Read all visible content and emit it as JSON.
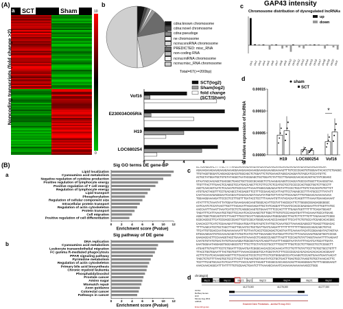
{
  "panelA": {
    "label": "(A)",
    "sublabel": "a",
    "col1": "SCT",
    "col2": "Sham",
    "ylabel": "Noncoding transcripts (fold change >2)",
    "scale_top": "10",
    "scale_bottom": "0"
  },
  "panelB_top": {
    "label": "b",
    "total": "Total=67(>=200bp)",
    "legend": [
      "cdna:known chromosome",
      "cdna:novel chromosome",
      "cdna:pseudoge",
      "ne chromosome",
      "ncrna:snoRNA chromosome",
      "PREDICTED: misc_RNA",
      "non-coding RNA",
      "ncrna:miRNA chromosome",
      "ncrna:misc_RNA chromosome"
    ],
    "legend_colors": [
      "#111111",
      "#4a4a4a",
      "#8c8c8c",
      "#ffffff",
      "#d9d9d9",
      "#707070",
      "#bdbdbd",
      "#f2f2f2",
      "#cfcfcf"
    ]
  },
  "panelC_top": {
    "label": "c",
    "title": "GAP43 intensity",
    "subtitle": "Chromosome distribution of dysregulated lncRNAs",
    "legend_up": "up",
    "legend_down": "down",
    "chromosomes": [
      "chr1",
      "chr2",
      "chr3",
      "chr4",
      "chr5",
      "chr6",
      "chr7",
      "chr8",
      "chr9",
      "chr10",
      "chr11",
      "chr12",
      "chr13",
      "chr14",
      "chr15",
      "chr16",
      "chr17",
      "chr18",
      "chr19",
      "chr20",
      "chrX"
    ]
  },
  "hbar_chart": {
    "legend": [
      "SCT(log2)",
      "Sham(log2)",
      "fold change (SCT/Sham)"
    ],
    "genes": [
      "Vof16",
      "E230034O05Rik",
      "H19",
      "LOC680254"
    ],
    "ticks": [
      "0",
      "2",
      "4",
      "6",
      "8",
      "10"
    ]
  },
  "panelD_top": {
    "label": "d",
    "ylabel": "The relative expression of lncRNA",
    "legend_sham": "sham",
    "legend_sct": "SCT",
    "yticks": [
      "0.00015",
      "0.00010",
      "0.00005",
      "0.00000"
    ],
    "genes": [
      "H19",
      "LOC680254",
      "Vof16"
    ],
    "star": "*"
  },
  "panelB_bottom": {
    "label": "(B)",
    "sublabel_a": "a",
    "title_a": "Sig GO terms DE gene-BP",
    "terms_a": [
      "Lipid localization",
      "Cyanoamino acid metabolism",
      "Negative regulation of cytokine production",
      "Positive regulation of lymphocyte energy",
      "Positive regulation of T cell energy",
      "Regulation of lymphocyte energy",
      "Lipid transport",
      "Phosphorylation",
      "Regulation of cellular component size",
      "Intracellular protein transport",
      "Regulation of actin cytoskeleton",
      "Protein transport",
      "Cell migration",
      "Positive regulation of cell differentiation"
    ],
    "xlabel_a": "Enrichment score (Pvalue)",
    "xticks_a": [
      "0",
      "2",
      "4",
      "6",
      "8",
      "10",
      "12"
    ],
    "sublabel_b": "b",
    "title_b": "Sig pathway of DE gene",
    "terms_b": [
      "DNA replication",
      "Cyanoamino acid metabolism",
      "Leukocyte transendothelial migration",
      "FC gamma R-mediated phagocytosis",
      "PPAR signaling pathway",
      "Pyrimidine metabolism",
      "Regulation of actin cytoskeleton",
      "Primary bile acid biosynthesis",
      "Chronic myeloid leukemia",
      "Phosphatidylinositol",
      "Prostate cancer",
      "Amino sugar",
      "Mismatch repair",
      "Axon guidance",
      "Colorectal cancer",
      "Pathways in cancer"
    ],
    "xlabel_b": "Enrichment score (Pvalue)",
    "xticks_b": [
      "0",
      "2",
      "4",
      "6",
      "8",
      "10",
      "12"
    ]
  },
  "panelC_bottom": {
    "label": "c",
    "sequence": "GCTGAAGGAACTTTTGCTTTTAAGGAAAAAGAAAGAAAGAAAGAAAGAAAGAAAGAAAGAAAGAAAGAAAGAAAGAA\nAGAAAGAAAGAAAGAAAGAAAAGGAAAGAAAGAAAGGAAAGAAAAGGAAAAGTTTGTCCCCGAGTGTGGGAATACACCTCTGAGGCTTCA\nTTGTAGGTGGGATCAGGAGCAGACGTGGCAGCTCTGGATTCTGTGAAAGTAGGCACAGGATGTAGCATCCCATGTTC\nACTGCTATGGATGCTGTGTATAGGCTAATACGGAGCTGCTGGATCTATTCCTTGAGAGCAACACACAGTACTATCGGAGC\nGTAATACCAACAGCTGACGGCTGAGCTGCTCGCCGCAGGCTCTCAAAGACAGGTCCAGCATGCCCATGGCTTCAACGGTAA\nTTGTTTACTTTGAACTCCAGGCTCCATGACCAGCTTCTCTTCCTCTCCATGCTCCTCCCCCCACTGGCTGGTCTTGCCTT\nAGCTCAACAGTAATCTCAAAATGTGCCCAATTAAAATGGGCAGGAGAATGTATTCCCCTGCATTGTCTACACGTGTGTTCT\nATGTGACTAGGTTTCCTGACAGCCTACGAGGTTCCTTTCCGAACACCATTAGTTCCTAGAGCCCTTTATGCCCTTTATATT\nCAATACAAAAGAGGGAATCAAGAATCAGAAAAGATAAAATATGGTGTTATACTTGCAAGATTTGTGGAACAAAAAAAAAA\nTGGAAGGAAAAGATTCCCCTCCTTGGTTTGATACCTCCTTTAAAAATGTTATACACAATCAGGTTTTAAAATGAAAGAAAAT\nATATTTTCTAAATATTATGGAATGAAAGAAGCAAGTGGGCACATTCGTATTAGCGCATTCTTGGGGCGGAGAGGGGGGC\nAATCAATCTCCATAACTTGCTTTAGAAATTAGAAAGATTGCTATCAGGATTTAAATCCACCCGAGAGAATTATTGGTTATGC\nAACCAATTTAAATTAAATCATCCTCTCAGGGCAAGTGTGAAATTTTCCCACTTTTTGAGATGGTTTTTTTCAGATGGAGT\nTAGATTTCATTAAAATGCTGGTTCCAAATCACCAAAGCTGTTGGCTTTGTGTCCCAAGATGATTTACAAAATGCCATGAAG\nAGGCTGGCTGGCAGTGTCTTAAGTTTGCCTGCATTAGGAGAAGAATGGGGAGGCTTAGTCTTCTTTGTTTAGAAAACTCGGG\nGCGCAGCGCTTCATCCGAGCCCGAGTTCGTCCGCATGGGCAAACACCCAAGGATTTCCATTCTGTGCCATCGAGCACACGGC\nCAACACCTTCATCTCGAAAGATTTGGAATGGATTGATAGTCTATTGCTCAAATGCTTAAAAGCAGGCCTTGAGCTTGGACAC\nTTTTAAGCATCCTGCTAGCTTAGTTGCAATCCTGCTGATTGATCAAGATTTTTTTTTTTTTTGGCACCAGACAGCTGTAC\nTTCATTGTCGACCAATAGAAAAAAAATTTGTTAATCACCTCGCAGACTCAGTAATTCAAAAATACATCCGGAAGATACTAGTAA\nGTGGAAGGAATGTGCAAAACAGCTATGGTCATCCTGTTGAAAGGCTAATGGATTCTCCTTTAAACAAAGTGGAGTGGTCCCGG\nGAAGAGCACTTCCAAAGGTAGCTGAAATGTAAAACCTCAGGCCCAGGTTTAGTTTCCCAGTGTATTAGGTAAAATTTTAAGAAT\nCAATGTGTATGTGACTATGTGAAAAGGATGGCGGTACATCAGGTTAAATTTAGGGTAATATATTTACATCATGCATTGATA\nGAATGGGAATAGGAGGTGGCAGGCGTCTTTCCTTCCTATCCCTGCCTTTCGCTTTTGGTCCCTCTTGGCCTCCTCCGGCTT\nATGAGTTGTAGTTTCCTCTGGATTTCGAATGATCGGGCAACACCCACAAACATTCTTGTTTGTATTCCTTGTGCTGCCTGTTT\nTTACCTGGTGGAATTTACTGGTGGTTTAAAACCGGGGTCCATCGGTATCTTTCCCCCGCACACACACACACACACACGGAAT\nACTTCTCATCACAAGGCAGGTTTCTCAACACTCCCCTCCTTCCTCGTGGGAGCCCATCAAGGTCCCAGTGAAATGAATAACAT\nTAGCTCTGTTTTAAGTGCTCCCTTACCTTAGAAGTGGTAAATATCCTGCTGACTTGAGTGCCTAAGGTGTGCTAAACACTTC\nTCCTTTCAGTGCAAATATCAATTTCTTACCCAGTCTAGAGTTACGGCCACCAGCACAGTTAGAGGGGACTGTTTAGGGGAAGT\nAAACAAACAGGCATTTATTTTTGTGCGAACTGAATCTTTAAAAGCAAAATCAAAAAAAAAAAAAAGCCTGGG"
  },
  "panelD_bottom": {
    "label": "d",
    "chr": "chr1Bq22)",
    "bands": [
      "Bq11",
      "Bq12",
      "Bq13",
      "Bq21",
      "Bq22",
      "Bq23",
      "Bq24",
      "Bq31",
      "Bq32"
    ],
    "scale_left": "44,273,000",
    "scale_mid": "44,276,000",
    "scale_right": "44,277,000",
    "track1": "UCSC",
    "track2": "RefSeq Genes",
    "track_note": "Ensembl Gene Predictions - archive75 map 2013",
    "track3": "H19",
    "track_mouse": "Mouse Aug 2011",
    "track_mrna": "ncRNA",
    "track4": "Ensembl genes"
  }
}
